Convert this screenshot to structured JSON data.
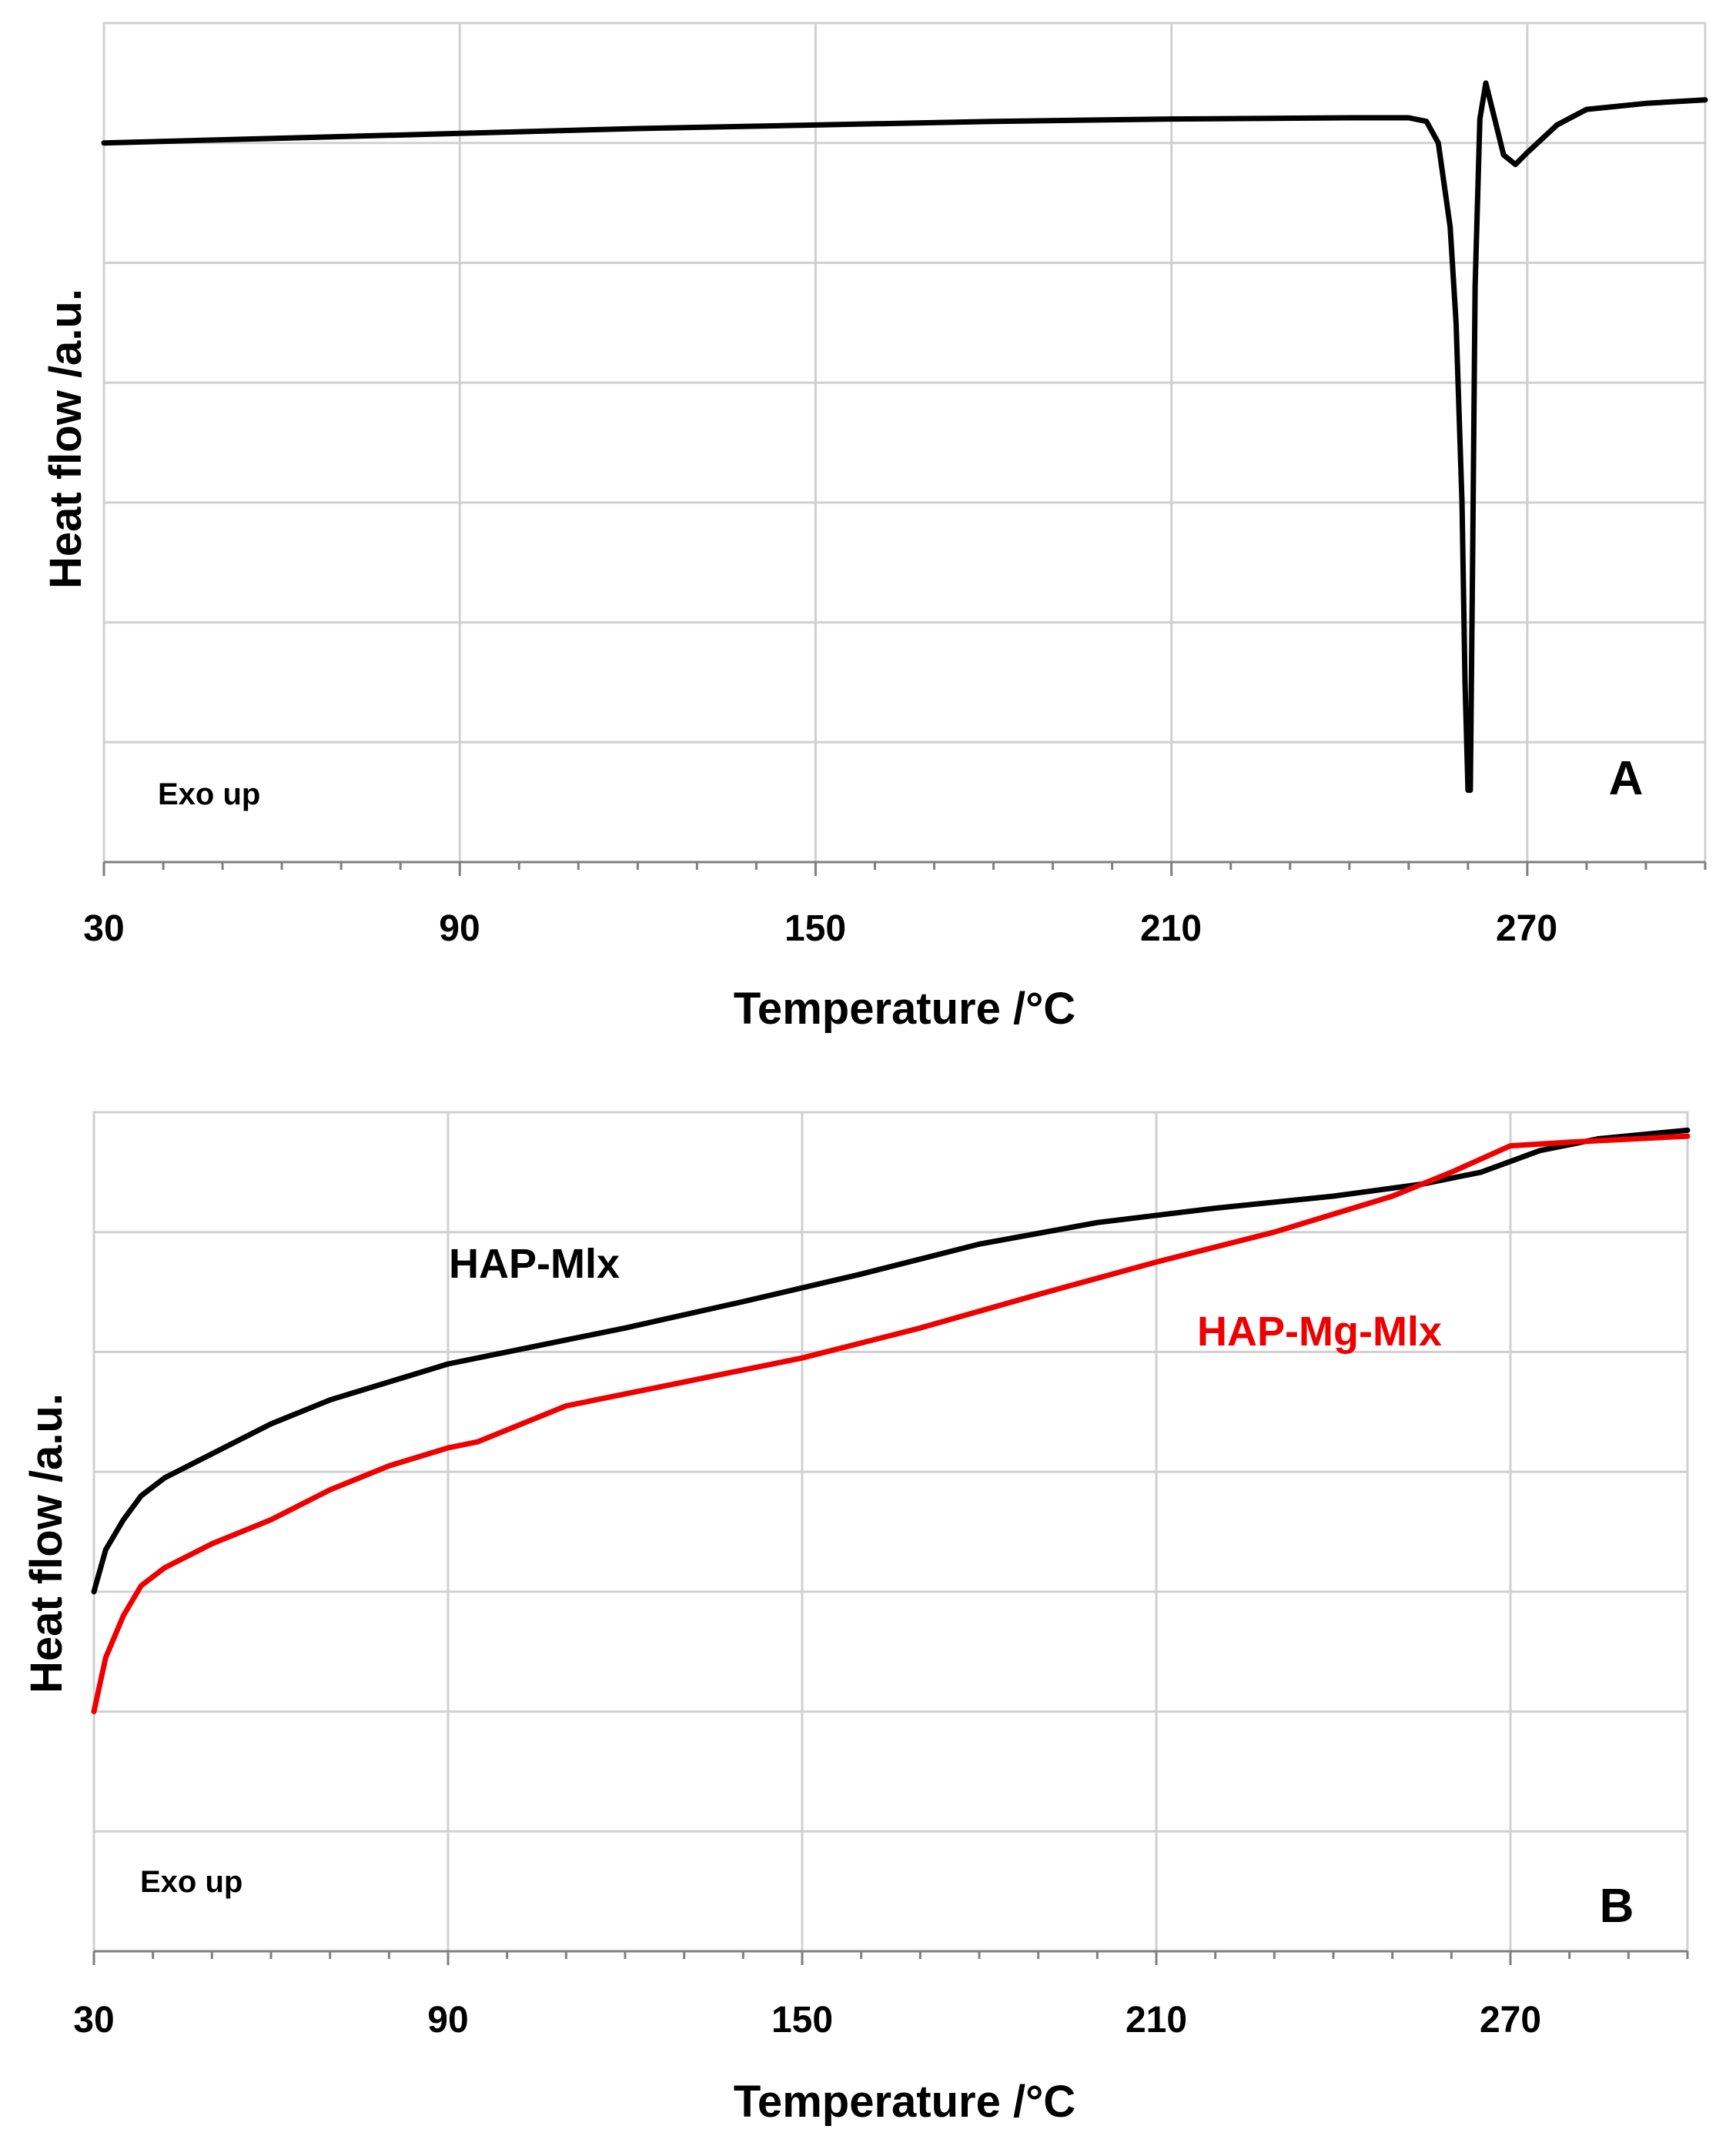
{
  "chart_data": [
    {
      "type": "line",
      "panel_label": "A",
      "title": "",
      "xlabel": "Temperature /°C",
      "ylabel": "Heat flow /a.u.",
      "xlim": [
        30,
        300
      ],
      "ylim": [
        0,
        7
      ],
      "x_ticks": [
        "30",
        "90",
        "150",
        "210",
        "270"
      ],
      "x_tick_values": [
        30,
        90,
        150,
        210,
        270
      ],
      "y_gridlines": [
        1,
        2,
        3,
        4,
        5,
        6,
        7
      ],
      "grid": true,
      "annotation": "Exo up",
      "series": [
        {
          "name": "",
          "color": "#000000",
          "x": [
            30,
            60,
            90,
            120,
            150,
            180,
            210,
            240,
            250,
            253,
            255,
            257,
            258,
            259,
            259.5,
            260,
            260.4,
            260.8,
            261.2,
            262,
            263,
            264,
            266,
            268,
            270,
            275,
            280,
            290,
            300
          ],
          "y": [
            6.0,
            6.04,
            6.08,
            6.12,
            6.15,
            6.18,
            6.2,
            6.21,
            6.21,
            6.18,
            6.0,
            5.3,
            4.5,
            3.0,
            1.5,
            0.6,
            0.6,
            2.6,
            4.8,
            6.2,
            6.5,
            6.3,
            5.9,
            5.82,
            5.92,
            6.15,
            6.28,
            6.33,
            6.36
          ]
        }
      ]
    },
    {
      "type": "line",
      "panel_label": "B",
      "title": "",
      "xlabel": "Temperature /°C",
      "ylabel": "Heat flow /a.u.",
      "xlim": [
        30,
        300
      ],
      "ylim": [
        0,
        7
      ],
      "x_ticks": [
        "30",
        "90",
        "150",
        "210",
        "270"
      ],
      "x_tick_values": [
        30,
        90,
        150,
        210,
        270
      ],
      "y_gridlines": [
        1,
        2,
        3,
        4,
        5,
        6,
        7
      ],
      "grid": true,
      "annotation": "Exo up",
      "series": [
        {
          "name": "HAP-Mlx",
          "color": "#000000",
          "x": [
            30,
            32,
            35,
            38,
            42,
            50,
            60,
            70,
            80,
            90,
            100,
            120,
            140,
            160,
            180,
            200,
            220,
            240,
            255,
            265,
            275,
            285,
            300
          ],
          "y": [
            3.0,
            3.35,
            3.6,
            3.8,
            3.95,
            4.15,
            4.4,
            4.6,
            4.75,
            4.9,
            5.0,
            5.2,
            5.42,
            5.65,
            5.9,
            6.08,
            6.2,
            6.3,
            6.4,
            6.5,
            6.68,
            6.78,
            6.85
          ]
        },
        {
          "name": "HAP-Mg-Mlx",
          "color": "#ee0000",
          "x": [
            30,
            32,
            35,
            38,
            42,
            50,
            60,
            70,
            80,
            90,
            95,
            100,
            110,
            130,
            150,
            170,
            190,
            210,
            230,
            250,
            260,
            270,
            280,
            300
          ],
          "y": [
            2.0,
            2.45,
            2.8,
            3.05,
            3.2,
            3.4,
            3.6,
            3.85,
            4.05,
            4.2,
            4.25,
            4.35,
            4.55,
            4.75,
            4.95,
            5.2,
            5.48,
            5.75,
            6.0,
            6.3,
            6.5,
            6.72,
            6.75,
            6.8
          ]
        }
      ]
    }
  ]
}
